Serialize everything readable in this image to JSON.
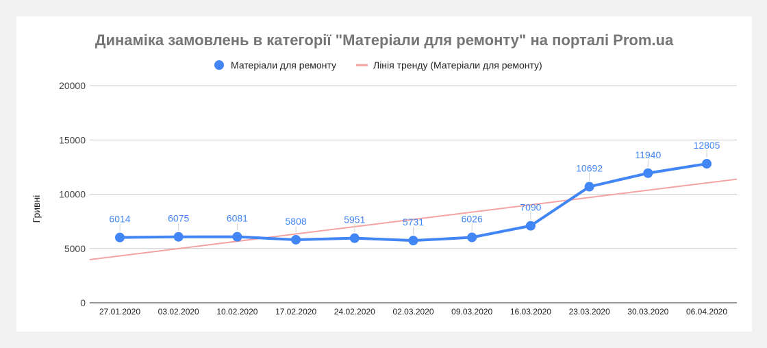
{
  "chart_data": {
    "type": "line",
    "title": "Динаміка замовлень в категорії \"Матеріали для ремонту\" на порталі Prom.ua",
    "xlabel": "",
    "ylabel": "Гривні",
    "categories": [
      "27.01.2020",
      "03.02.2020",
      "10.02.2020",
      "17.02.2020",
      "24.02.2020",
      "02.03.2020",
      "09.03.2020",
      "16.03.2020",
      "23.03.2020",
      "30.03.2020",
      "06.04.2020"
    ],
    "series": [
      {
        "name": "Матеріали для ремонту",
        "values": [
          6014,
          6075,
          6081,
          5808,
          5951,
          5731,
          6026,
          7090,
          10692,
          11940,
          12805
        ],
        "color": "#4285f4"
      }
    ],
    "trendline": {
      "name": "Лінія тренду (Матеріали для ремонту)",
      "color": "#f4a3a3",
      "start": 3975,
      "end": 11384
    },
    "ylim": [
      0,
      20000
    ],
    "yticks": [
      0,
      5000,
      10000,
      15000,
      20000
    ],
    "grid": true,
    "legend_position": "top",
    "data_labels": true,
    "background": "#ffffff",
    "page_background": "#f2f2f2"
  }
}
